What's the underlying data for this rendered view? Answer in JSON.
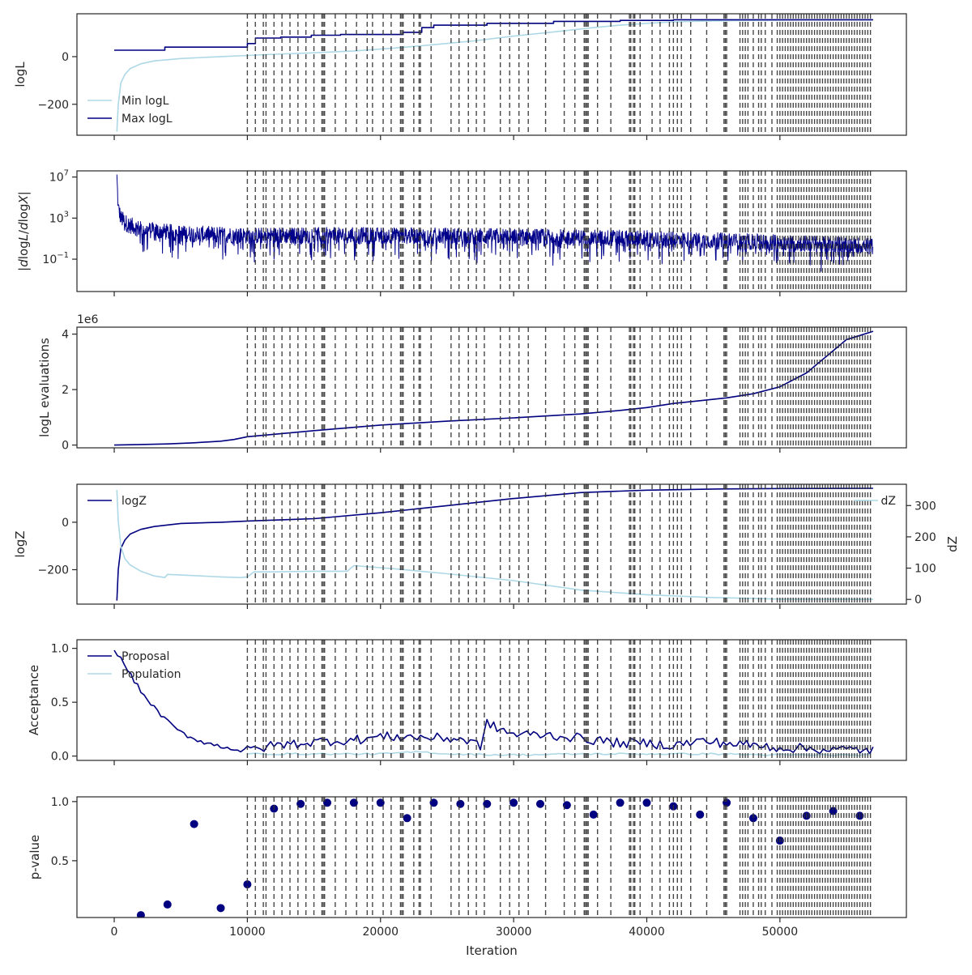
{
  "chart_data": [
    {
      "type": "line",
      "ylabel": "logL",
      "ylim": [
        -330,
        180
      ],
      "yticks": [
        {
          "v": 0,
          "t": "0"
        },
        {
          "v": -200,
          "t": "−200"
        }
      ],
      "legend": "lower-left",
      "series": [
        {
          "name": "Min logL",
          "color": "#add8e6",
          "x": [
            200,
            300,
            500,
            800,
            1200,
            2000,
            3000,
            5000,
            8000,
            10000,
            12000,
            15000,
            18000,
            21000,
            24000,
            27000,
            30000,
            33000,
            36000,
            38000,
            40000,
            42000,
            45000,
            48000,
            52000,
            56000,
            57000
          ],
          "y": [
            -315,
            -200,
            -110,
            -75,
            -50,
            -30,
            -18,
            -8,
            0,
            5,
            10,
            16,
            24,
            36,
            50,
            66,
            86,
            104,
            122,
            132,
            140,
            146,
            150,
            152,
            154,
            155,
            155
          ]
        },
        {
          "name": "Max logL",
          "color": "#000080",
          "x": [
            0,
            3800,
            3800,
            10000,
            10000,
            10600,
            10600,
            12500,
            12500,
            14800,
            14800,
            17000,
            17000,
            21700,
            21700,
            23100,
            23100,
            24000,
            24000,
            28000,
            28000,
            33000,
            33000,
            38000,
            38000,
            42000,
            42000,
            57000
          ],
          "y": [
            27,
            27,
            40,
            40,
            55,
            55,
            78,
            78,
            82,
            82,
            90,
            90,
            93,
            93,
            102,
            102,
            122,
            122,
            132,
            132,
            140,
            140,
            148,
            148,
            152,
            152,
            155,
            155
          ]
        }
      ]
    },
    {
      "type": "line",
      "ylabel": "|dlogL/dlogX|",
      "yscale": "log",
      "ylim": [
        -4.15,
        7.6
      ],
      "yticks": [
        {
          "v": 7,
          "t": "10",
          "e": "7"
        },
        {
          "v": 3,
          "t": "10",
          "e": "3"
        },
        {
          "v": -1,
          "t": "10",
          "e": "−1"
        }
      ],
      "series": [
        {
          "name": "",
          "color": "#00008b",
          "x": [
            200,
            300,
            500,
            1000,
            2000,
            5000,
            10000,
            20000,
            30000,
            40000,
            50000,
            57000
          ],
          "y": [
            7.0,
            4.0,
            3.0,
            2.4,
            1.9,
            1.5,
            1.3,
            1.3,
            1.2,
            1.0,
            0.6,
            0.3
          ]
        }
      ]
    },
    {
      "type": "line",
      "ylabel": "logL evaluations",
      "offset": "1e6",
      "ylim": [
        -0.1,
        4.25
      ],
      "yticks": [
        {
          "v": 4,
          "t": "4"
        },
        {
          "v": 2,
          "t": "2"
        },
        {
          "v": 0,
          "t": "0"
        }
      ],
      "series": [
        {
          "name": "",
          "color": "#000080",
          "x": [
            0,
            2000,
            4000,
            6000,
            8000,
            9000,
            10000,
            15000,
            20000,
            25000,
            30000,
            35000,
            38000,
            40000,
            42000,
            44000,
            46000,
            48000,
            50000,
            52000,
            53000,
            54000,
            55000,
            56000,
            57000
          ],
          "y": [
            0.0,
            0.02,
            0.04,
            0.08,
            0.14,
            0.2,
            0.3,
            0.52,
            0.72,
            0.86,
            0.98,
            1.12,
            1.25,
            1.35,
            1.5,
            1.6,
            1.7,
            1.85,
            2.1,
            2.6,
            3.0,
            3.4,
            3.8,
            3.95,
            4.1
          ]
        }
      ]
    },
    {
      "type": "line",
      "ylabel": "logZ",
      "ylim": [
        -345,
        160
      ],
      "yticks": [
        {
          "v": 0,
          "t": "0"
        },
        {
          "v": -200,
          "t": "−200"
        }
      ],
      "y2label": "dZ",
      "y2lim": [
        -15,
        368
      ],
      "y2ticks": [
        {
          "v": 300,
          "t": "300"
        },
        {
          "v": 200,
          "t": "200"
        },
        {
          "v": 100,
          "t": "100"
        },
        {
          "v": 0,
          "t": "0"
        }
      ],
      "legend": "top-left",
      "legend2": "top-right",
      "series": [
        {
          "name": "logZ",
          "axis": "left",
          "color": "#000080",
          "x": [
            200,
            300,
            500,
            800,
            1200,
            2000,
            3000,
            5000,
            8000,
            10000,
            15000,
            20000,
            25000,
            30000,
            35000,
            40000,
            45000,
            50000,
            57000
          ],
          "y": [
            -330,
            -200,
            -110,
            -75,
            -50,
            -30,
            -18,
            -5,
            0,
            5,
            15,
            40,
            70,
            100,
            125,
            135,
            140,
            142,
            143
          ]
        },
        {
          "name": "dZ",
          "axis": "right",
          "color": "#add8e6",
          "x": [
            200,
            300,
            500,
            800,
            1200,
            2000,
            3000,
            3800,
            4000,
            6000,
            8000,
            9500,
            10000,
            10500,
            12000,
            15000,
            17500,
            18000,
            21000,
            23000,
            25000,
            30000,
            35000,
            40000,
            45000,
            50000,
            57000
          ],
          "y": [
            350,
            250,
            170,
            130,
            110,
            90,
            75,
            70,
            80,
            76,
            72,
            70,
            72,
            88,
            88,
            90,
            90,
            108,
            98,
            90,
            82,
            60,
            30,
            15,
            6,
            1,
            0
          ]
        }
      ]
    },
    {
      "type": "line",
      "ylabel": "Acceptance",
      "ylim": [
        -0.04,
        1.08
      ],
      "yticks": [
        {
          "v": 1,
          "t": "1.0"
        },
        {
          "v": 0.5,
          "t": "0.5"
        },
        {
          "v": 0,
          "t": "0.0"
        }
      ],
      "legend": "top-left",
      "series": [
        {
          "name": "Proposal",
          "color": "#000080",
          "x": [
            0,
            500,
            1000,
            2000,
            3000,
            4000,
            5000,
            6000,
            7000,
            8000,
            9000,
            10000,
            12000,
            14000,
            16000,
            18000,
            20000,
            22000,
            24000,
            26000,
            27500,
            28000,
            29000,
            30000,
            32000,
            34000,
            36000,
            38000,
            40000,
            42000,
            44000,
            46000,
            48000,
            50000,
            52000,
            54000,
            56000,
            57000
          ],
          "y": [
            1.0,
            0.9,
            0.8,
            0.6,
            0.45,
            0.32,
            0.22,
            0.16,
            0.12,
            0.09,
            0.07,
            0.05,
            0.1,
            0.12,
            0.14,
            0.15,
            0.18,
            0.18,
            0.17,
            0.16,
            0.1,
            0.3,
            0.25,
            0.2,
            0.2,
            0.18,
            0.15,
            0.12,
            0.12,
            0.1,
            0.14,
            0.12,
            0.1,
            0.08,
            0.07,
            0.06,
            0.06,
            0.05
          ]
        },
        {
          "name": "Population",
          "color": "#add8e6",
          "x": [
            10000,
            15000,
            20000,
            23000,
            25000,
            30000,
            35000,
            40000,
            45000,
            50000,
            57000
          ],
          "y": [
            0.02,
            0.02,
            0.02,
            0.04,
            0.02,
            0.01,
            0.02,
            0.02,
            0.02,
            0.01,
            0.01
          ]
        }
      ]
    },
    {
      "type": "scatter",
      "ylabel": "p-value",
      "xlabel": "Iteration",
      "ylim": [
        0.02,
        1.04
      ],
      "yticks": [
        {
          "v": 1,
          "t": "1.0"
        },
        {
          "v": 0.5,
          "t": "0.5"
        }
      ],
      "series": [
        {
          "name": "",
          "color": "#000080",
          "x": [
            2000,
            4000,
            6000,
            8000,
            10000,
            12000,
            14000,
            16000,
            18000,
            20000,
            22000,
            24000,
            26000,
            28000,
            30000,
            32000,
            34000,
            36000,
            38000,
            40000,
            42000,
            44000,
            46000,
            48000,
            50000,
            52000,
            54000,
            56000
          ],
          "y": [
            0.04,
            0.13,
            0.81,
            0.1,
            0.3,
            0.94,
            0.98,
            0.99,
            0.99,
            0.99,
            0.86,
            0.99,
            0.98,
            0.98,
            0.99,
            0.98,
            0.97,
            0.89,
            0.99,
            0.99,
            0.96,
            0.89,
            0.99,
            0.86,
            0.67,
            0.88,
            0.92,
            0.88
          ]
        }
      ]
    }
  ],
  "shared_x": {
    "xlim": [
      -2800,
      59500
    ],
    "xticks": [
      {
        "v": 0,
        "t": "0"
      },
      {
        "v": 10000,
        "t": "10000"
      },
      {
        "v": 20000,
        "t": "20000"
      },
      {
        "v": 30000,
        "t": "30000"
      },
      {
        "v": 40000,
        "t": "40000"
      },
      {
        "v": 50000,
        "t": "50000"
      }
    ],
    "xlabel": "Iteration"
  },
  "vlines": [
    10000,
    10600,
    11200,
    11400,
    12000,
    12600,
    13200,
    13800,
    14400,
    15000,
    15600,
    15700,
    15800,
    16600,
    17400,
    18200,
    19000,
    19400,
    20200,
    20800,
    21500,
    21600,
    21700,
    22500,
    22900,
    23000,
    23800,
    25300,
    25900,
    26600,
    27200,
    27800,
    29000,
    29700,
    30400,
    31100,
    32400,
    33800,
    34600,
    35300,
    35400,
    35500,
    35600,
    36300,
    37300,
    38700,
    38800,
    39000,
    39100,
    39500,
    40400,
    41000,
    41700,
    42000,
    42300,
    42600,
    43300,
    44500,
    45800,
    45900,
    46000,
    47000,
    47200,
    47400,
    47600,
    48000,
    48400,
    48600,
    48900,
    49400,
    49800,
    50000,
    50200,
    50400,
    50600,
    50800,
    51000,
    51200,
    51400,
    51600,
    51800,
    52000,
    52200,
    52400,
    52600,
    52800,
    53000,
    53200,
    53400,
    53600,
    53800,
    54000,
    54200,
    54400,
    54600,
    54800,
    55000,
    55200,
    55400,
    55600,
    55800,
    56000,
    56200,
    56400,
    56600,
    56800
  ],
  "colors": {
    "navy": "#000080",
    "lightblue": "#add8e6",
    "vline": "#333333",
    "axes": "#262626"
  }
}
